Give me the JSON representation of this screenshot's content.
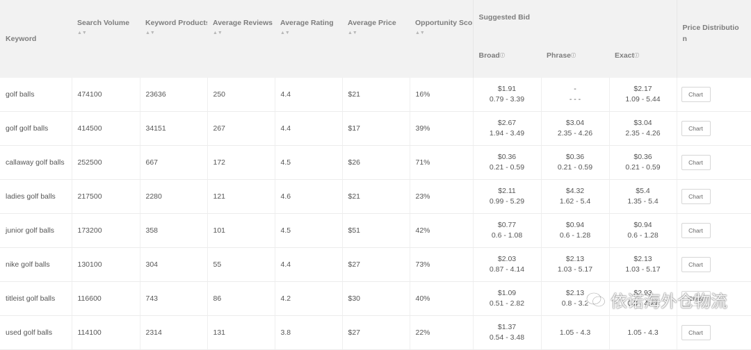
{
  "columns": {
    "keyword": "Keyword",
    "search_volume": "Search Volume",
    "keyword_products": "Keyword Products",
    "average_reviews": "Average Reviews",
    "average_rating": "Average Rating",
    "average_price": "Average Price",
    "opportunity_score": "Opportunity Score",
    "suggested_bid": "Suggested Bid",
    "broad": "Broad",
    "phrase": "Phrase",
    "exact": "Exact",
    "price_distribution_line1": "Price Distributio",
    "price_distribution_line2": "n"
  },
  "sort_glyph": "▲▼",
  "info_glyph": "ⓘ",
  "chart_button_label": "Chart",
  "rows": [
    {
      "keyword": "golf balls",
      "search_volume": "474100",
      "keyword_products": "23636",
      "average_reviews": "250",
      "average_rating": "4.4",
      "average_price": "$21",
      "opportunity_score": "16%",
      "broad": {
        "value": "$1.91",
        "range": "0.79 - 3.39"
      },
      "phrase": {
        "value": "-",
        "range": "- - -"
      },
      "exact": {
        "value": "$2.17",
        "range": "1.09 - 5.44"
      }
    },
    {
      "keyword": "golf golf balls",
      "search_volume": "414500",
      "keyword_products": "34151",
      "average_reviews": "267",
      "average_rating": "4.4",
      "average_price": "$17",
      "opportunity_score": "39%",
      "broad": {
        "value": "$2.67",
        "range": "1.94 - 3.49"
      },
      "phrase": {
        "value": "$3.04",
        "range": "2.35 - 4.26"
      },
      "exact": {
        "value": "$3.04",
        "range": "2.35 - 4.26"
      }
    },
    {
      "keyword": "callaway golf balls",
      "search_volume": "252500",
      "keyword_products": "667",
      "average_reviews": "172",
      "average_rating": "4.5",
      "average_price": "$26",
      "opportunity_score": "71%",
      "broad": {
        "value": "$0.36",
        "range": "0.21 - 0.59"
      },
      "phrase": {
        "value": "$0.36",
        "range": "0.21 - 0.59"
      },
      "exact": {
        "value": "$0.36",
        "range": "0.21 - 0.59"
      }
    },
    {
      "keyword": "ladies golf balls",
      "search_volume": "217500",
      "keyword_products": "2280",
      "average_reviews": "121",
      "average_rating": "4.6",
      "average_price": "$21",
      "opportunity_score": "23%",
      "broad": {
        "value": "$2.11",
        "range": "0.99 - 5.29"
      },
      "phrase": {
        "value": "$4.32",
        "range": "1.62 - 5.4"
      },
      "exact": {
        "value": "$5.4",
        "range": "1.35 - 5.4"
      }
    },
    {
      "keyword": "junior golf balls",
      "search_volume": "173200",
      "keyword_products": "358",
      "average_reviews": "101",
      "average_rating": "4.5",
      "average_price": "$51",
      "opportunity_score": "42%",
      "broad": {
        "value": "$0.77",
        "range": "0.6 - 1.08"
      },
      "phrase": {
        "value": "$0.94",
        "range": "0.6 - 1.28"
      },
      "exact": {
        "value": "$0.94",
        "range": "0.6 - 1.28"
      }
    },
    {
      "keyword": "nike golf balls",
      "search_volume": "130100",
      "keyword_products": "304",
      "average_reviews": "55",
      "average_rating": "4.4",
      "average_price": "$27",
      "opportunity_score": "73%",
      "broad": {
        "value": "$2.03",
        "range": "0.87 - 4.14"
      },
      "phrase": {
        "value": "$2.13",
        "range": "1.03 - 5.17"
      },
      "exact": {
        "value": "$2.13",
        "range": "1.03 - 5.17"
      }
    },
    {
      "keyword": "titleist golf balls",
      "search_volume": "116600",
      "keyword_products": "743",
      "average_reviews": "86",
      "average_rating": "4.2",
      "average_price": "$30",
      "opportunity_score": "40%",
      "broad": {
        "value": "$1.09",
        "range": "0.51 - 2.82"
      },
      "phrase": {
        "value": "$2.13",
        "range": "0.8 - 3.2"
      },
      "exact": {
        "value": "$2.93",
        "range": "0.8 - 4.27"
      }
    },
    {
      "keyword": "used golf balls",
      "search_volume": "114100",
      "keyword_products": "2314",
      "average_reviews": "131",
      "average_rating": "3.8",
      "average_price": "$27",
      "opportunity_score": "22%",
      "broad": {
        "value": "$1.37",
        "range": "0.54 - 3.48"
      },
      "phrase": {
        "value": "",
        "range": "1.05 - 4.3"
      },
      "exact": {
        "value": "",
        "range": "1.05 - 4.3"
      }
    }
  ],
  "watermark": {
    "text": "依诺海外仓物流",
    "icon": "wechat-icon"
  }
}
